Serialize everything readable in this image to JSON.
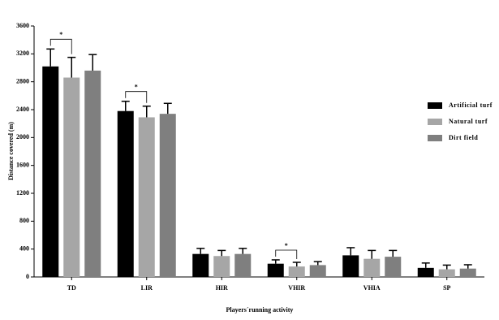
{
  "chart_data": {
    "type": "bar",
    "categories": [
      "TD",
      "LIR",
      "HIR",
      "VHIR",
      "VHIA",
      "SP"
    ],
    "series": [
      {
        "name": "Artificial turf",
        "color": "#000000",
        "values": [
          3020,
          2380,
          330,
          190,
          310,
          130
        ],
        "errors": [
          250,
          140,
          80,
          55,
          110,
          70
        ]
      },
      {
        "name": "Natural turf",
        "color": "#a6a6a6",
        "values": [
          2860,
          2290,
          300,
          150,
          260,
          110
        ],
        "errors": [
          290,
          160,
          80,
          60,
          120,
          60
        ]
      },
      {
        "name": "Dirt field",
        "color": "#7f7f7f",
        "values": [
          2960,
          2340,
          330,
          170,
          290,
          120
        ],
        "errors": [
          230,
          150,
          80,
          50,
          90,
          55
        ]
      }
    ],
    "ylabel": "Distance covered (m)",
    "xlabel": "Players´running activity",
    "ylim": [
      0,
      3600
    ],
    "yticks": [
      0,
      400,
      800,
      1200,
      1600,
      2000,
      2400,
      2800,
      3200,
      3600
    ],
    "annotations": [
      {
        "text": "*",
        "category": "TD"
      },
      {
        "text": "*",
        "category": "LIR"
      },
      {
        "text": "*",
        "category": "VHIR"
      }
    ],
    "legend": "right"
  }
}
